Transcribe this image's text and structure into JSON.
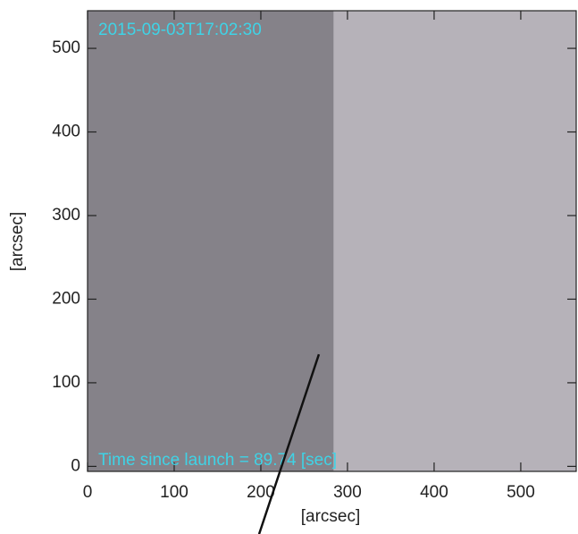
{
  "chart_data": {
    "type": "image",
    "xlabel": "[arcsec]",
    "ylabel": "[arcsec]",
    "annotations": [
      "2015-09-03T17:02:30",
      "Time since launch =  89.74 [sec]"
    ],
    "annotation_color": "#3fd3e6",
    "xlim": [
      0,
      564
    ],
    "ylim": [
      -6,
      545
    ],
    "xticks": [
      0,
      100,
      200,
      300,
      400,
      500
    ],
    "yticks": [
      0,
      100,
      200,
      300,
      400,
      500
    ],
    "regions": [
      {
        "x": [
          0,
          284
        ],
        "color": "#858289"
      },
      {
        "x": [
          284,
          564
        ],
        "color": "#b6b2b9"
      }
    ],
    "line": {
      "x": [
        198,
        267
      ],
      "y": [
        -81,
        134
      ],
      "color": "#111111"
    }
  }
}
